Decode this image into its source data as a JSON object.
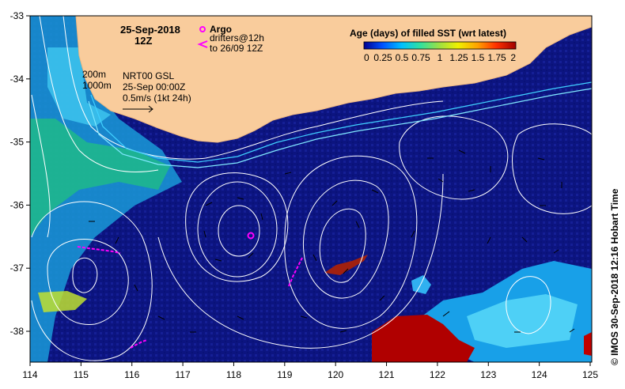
{
  "header": {
    "date": "25-Sep-2018",
    "time": "12Z"
  },
  "legend_argo": {
    "argo_label": "Argo",
    "drifters_label": "drifters@12h",
    "drifters_until": "to 26/09 12Z",
    "argo_color": "#ff00ff",
    "drifter_color": "#ff00ff"
  },
  "isobaths": {
    "label_200": "200m",
    "label_1000": "1000m"
  },
  "current_legend": {
    "product": "NRT00 GSL",
    "datetime": "25-Sep 00:00Z",
    "scale": "0.5m/s (1kt 24h)"
  },
  "colorbar": {
    "title": "Age (days) of filled SST (wrt latest)",
    "ticks": [
      "0",
      "0.25",
      "0.5",
      "0.75",
      "1",
      "1.25",
      "1.5",
      "1.75",
      "2"
    ],
    "colors": [
      "#000090",
      "#0050ff",
      "#00c0ff",
      "#30e0a0",
      "#a0e040",
      "#f0f000",
      "#ffa000",
      "#ff3000",
      "#a00000"
    ]
  },
  "credit": "©  IMOS 30-Sep-2018 12:16 Hobart Time",
  "axes": {
    "lon_ticks": [
      "114",
      "115",
      "116",
      "117",
      "118",
      "119",
      "120",
      "121",
      "122",
      "123",
      "124",
      "125"
    ],
    "lat_ticks": [
      "-33",
      "-34",
      "-35",
      "-36",
      "-37",
      "-38"
    ]
  },
  "colors": {
    "land": "#f9cc9c",
    "ocean": "#0c1480",
    "contour": "#ffffff"
  }
}
